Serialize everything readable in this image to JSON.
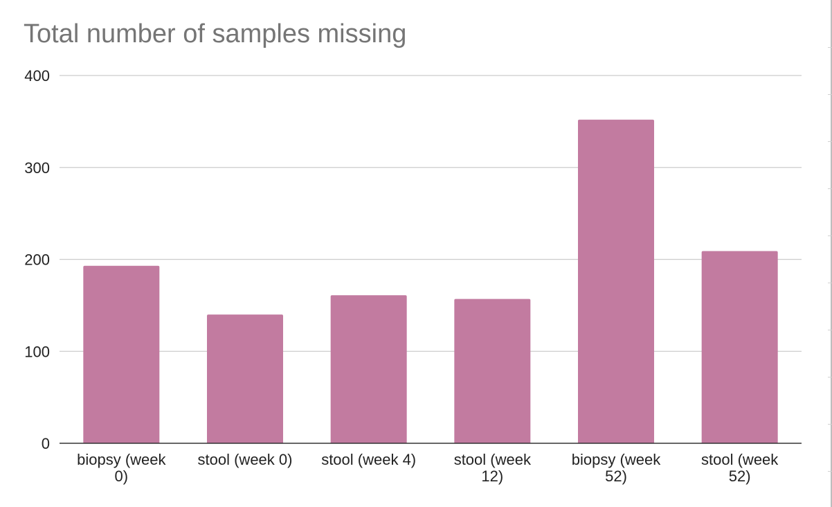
{
  "chart_data": {
    "type": "bar",
    "title": "Total number of samples missing",
    "categories": [
      [
        "biopsy (week",
        "0)"
      ],
      [
        "stool (week 0)"
      ],
      [
        "stool (week 4)"
      ],
      [
        "stool (week",
        "12)"
      ],
      [
        "biopsy (week",
        "52)"
      ],
      [
        "stool (week",
        "52)"
      ]
    ],
    "values": [
      193,
      140,
      161,
      157,
      352,
      209
    ],
    "yticks": [
      0,
      100,
      200,
      300,
      400
    ],
    "ylim": [
      0,
      400
    ],
    "xlabel": "",
    "ylabel": "",
    "grid": true,
    "legend": "none",
    "bar_color": "#c27ba0",
    "grid_color": "#cccccc",
    "axis_color": "#333333",
    "title_color": "#757575"
  }
}
